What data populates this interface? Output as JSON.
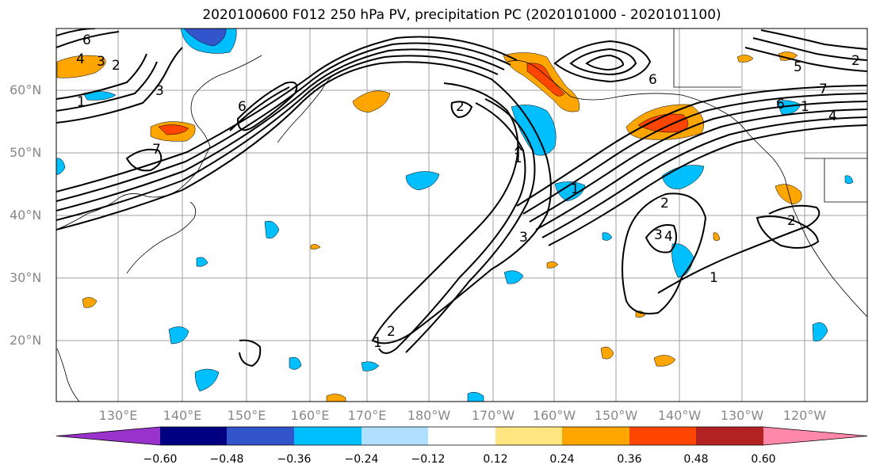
{
  "title": "2020100600 F012 250 hPa PV, precipitation PC (2020101000 - 2020101100)",
  "lat_labels": [
    "60°N",
    "50°N",
    "40°N",
    "30°N",
    "20°N"
  ],
  "lon_labels": [
    "130°E",
    "140°E",
    "150°E",
    "160°E",
    "170°E",
    "180°W",
    "170°W",
    "160°W",
    "150°W",
    "140°W",
    "130°W",
    "120°W"
  ],
  "colorbar": {
    "ticks": [
      "−0.60",
      "−0.48",
      "−0.36",
      "−0.24",
      "−0.12",
      "0.12",
      "0.24",
      "0.36",
      "0.48",
      "0.60"
    ],
    "colors": [
      "#9933cc",
      "#000080",
      "#3355cc",
      "#00bfff",
      "#b0e0ff",
      "#ffffff",
      "#ffe680",
      "#ffa500",
      "#ff4500",
      "#b22222",
      "#ff88aa"
    ]
  },
  "contour_labels": [
    "6",
    "4",
    "3",
    "2",
    "1",
    "6",
    "7",
    "1",
    "2",
    "3",
    "6",
    "1",
    "3",
    "2",
    "4",
    "1",
    "2",
    "3",
    "1",
    "5",
    "7",
    "2",
    "6",
    "1",
    "2",
    "4"
  ]
}
